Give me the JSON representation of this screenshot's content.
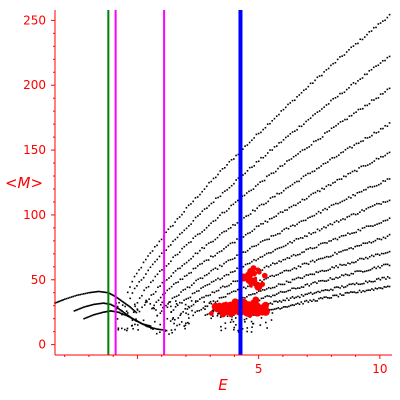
{
  "chart_data": {
    "type": "scatter",
    "title": "",
    "xlabel": "E",
    "ylabel": "<M>",
    "xlim": [
      -3.4,
      10.5
    ],
    "ylim": [
      -8,
      258
    ],
    "x_ticks": [
      -5,
      0,
      5,
      10
    ],
    "x_tick_labels": [
      "",
      "",
      "5",
      "10"
    ],
    "y_ticks": [
      0,
      50,
      100,
      150,
      200,
      250
    ],
    "y_tick_labels": [
      "0",
      "50",
      "100",
      "150",
      "200",
      "250"
    ],
    "grid": false,
    "colors": {
      "axes": "#ff0000",
      "black_points": "#000000",
      "red_points": "#ff0000",
      "green_line": "#008000",
      "magenta_lines": "#ff00ff",
      "blue_line": "#0000ff"
    },
    "vertical_lines": [
      {
        "x": -1.2,
        "color": "#008000"
      },
      {
        "x": -0.9,
        "color": "#ff00ff"
      },
      {
        "x": 1.1,
        "color": "#ff00ff"
      },
      {
        "x": 4.25,
        "color": "#0000ff"
      }
    ],
    "black_branches": [
      {
        "x_start": -0.4,
        "y_start": 40,
        "x_end": 10.4,
        "y_end": 254
      },
      {
        "x_start": -0.3,
        "y_start": 35,
        "x_end": 10.4,
        "y_end": 222
      },
      {
        "x_start": 0.0,
        "y_start": 32,
        "x_end": 10.4,
        "y_end": 197
      },
      {
        "x_start": 0.3,
        "y_start": 30,
        "x_end": 10.4,
        "y_end": 170
      },
      {
        "x_start": 0.6,
        "y_start": 28,
        "x_end": 10.4,
        "y_end": 148
      },
      {
        "x_start": 1.0,
        "y_start": 26,
        "x_end": 10.4,
        "y_end": 128
      },
      {
        "x_start": 1.4,
        "y_start": 25,
        "x_end": 10.4,
        "y_end": 112
      },
      {
        "x_start": 1.8,
        "y_start": 24,
        "x_end": 10.4,
        "y_end": 97
      },
      {
        "x_start": 2.3,
        "y_start": 23,
        "x_end": 10.4,
        "y_end": 84
      },
      {
        "x_start": 2.8,
        "y_start": 22,
        "x_end": 10.4,
        "y_end": 72
      },
      {
        "x_start": 3.3,
        "y_start": 22,
        "x_end": 10.4,
        "y_end": 62
      },
      {
        "x_start": 3.9,
        "y_start": 22,
        "x_end": 10.4,
        "y_end": 52
      },
      {
        "x_start": 4.5,
        "y_start": 21,
        "x_end": 10.4,
        "y_end": 45
      }
    ],
    "black_low_curves": [
      {
        "name": "",
        "x": [
          -3.4,
          -3.0,
          -2.5,
          -2.0,
          -1.6,
          -1.2,
          -0.9,
          -0.6,
          -0.3,
          0.0
        ],
        "y": [
          32,
          35,
          38,
          40,
          41,
          40,
          37,
          33,
          29,
          24
        ]
      },
      {
        "name": "",
        "x": [
          -2.6,
          -2.2,
          -1.8,
          -1.4,
          -1.1,
          -0.8,
          -0.5,
          -0.2,
          0.2,
          0.6
        ],
        "y": [
          26,
          29,
          31,
          32,
          31,
          28,
          24,
          20,
          16,
          14
        ]
      },
      {
        "name": "",
        "x": [
          -2.2,
          -1.8,
          -1.4,
          -1.1,
          -0.8,
          -0.4,
          0.0,
          0.4,
          0.8,
          1.2
        ],
        "y": [
          20,
          23,
          25,
          26,
          25,
          22,
          18,
          14,
          12,
          11
        ]
      }
    ],
    "red_clusters": [
      {
        "label": "",
        "cx": 4.5,
        "cy": 28,
        "spread_x": 1.1,
        "spread_y": 6,
        "count": 90
      },
      {
        "label": "",
        "cx": 3.6,
        "cy": 26,
        "spread_x": 0.7,
        "spread_y": 5,
        "count": 40
      },
      {
        "label": "",
        "cx": 4.8,
        "cy": 52,
        "spread_x": 0.7,
        "spread_y": 10,
        "count": 18
      }
    ]
  }
}
